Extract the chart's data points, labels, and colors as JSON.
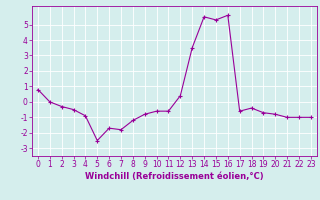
{
  "x": [
    0,
    1,
    2,
    3,
    4,
    5,
    6,
    7,
    8,
    9,
    10,
    11,
    12,
    13,
    14,
    15,
    16,
    17,
    18,
    19,
    20,
    21,
    22,
    23
  ],
  "y": [
    0.8,
    0.0,
    -0.3,
    -0.5,
    -0.9,
    -2.5,
    -1.7,
    -1.8,
    -1.2,
    -0.8,
    -0.6,
    -0.6,
    0.4,
    3.5,
    5.5,
    5.3,
    5.6,
    -0.6,
    -0.4,
    -0.7,
    -0.8,
    -1.0,
    -1.0,
    -1.0
  ],
  "title": "",
  "xlabel": "Windchill (Refroidissement éolien,°C)",
  "ylabel": "",
  "xlim": [
    -0.5,
    23.5
  ],
  "ylim": [
    -3.5,
    6.2
  ],
  "yticks": [
    -3,
    -2,
    -1,
    0,
    1,
    2,
    3,
    4,
    5
  ],
  "xticks": [
    0,
    1,
    2,
    3,
    4,
    5,
    6,
    7,
    8,
    9,
    10,
    11,
    12,
    13,
    14,
    15,
    16,
    17,
    18,
    19,
    20,
    21,
    22,
    23
  ],
  "line_color": "#990099",
  "marker": "+",
  "bg_color": "#d5eeed",
  "grid_color": "#ffffff",
  "tick_color": "#990099",
  "label_color": "#990099",
  "font_size": 5.5,
  "xlabel_fontsize": 6.0
}
